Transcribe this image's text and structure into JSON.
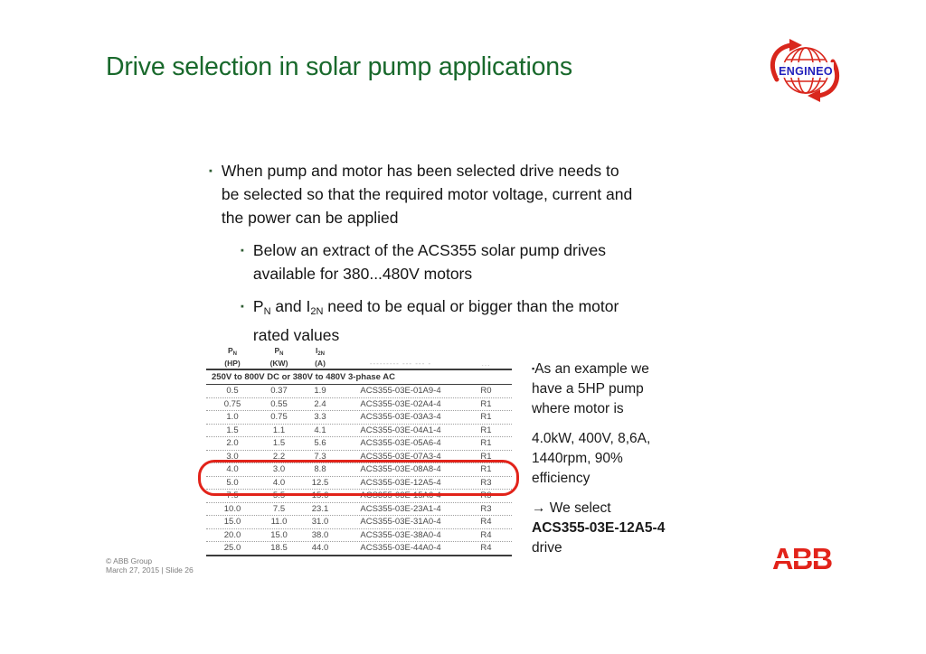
{
  "slide": {
    "title": "Drive selection in solar pump applications",
    "colors": {
      "title_green": "#19692c",
      "highlight_red": "#e2231a",
      "engineo_red": "#d9261c",
      "engineo_blue": "#2121bd",
      "abb_red": "#e2231a"
    },
    "engineo_logo": {
      "text": "ENGINEO"
    },
    "bullet1": {
      "marker": "▪",
      "lines": [
        "When pump and motor has been selected drive needs to",
        "be selected so that the required motor voltage, current and",
        "the power can be applied"
      ]
    },
    "sub1": {
      "marker": "▪",
      "lines": [
        "Below an extract of the ACS355 solar pump drives",
        "available for 380...480V motors"
      ]
    },
    "sub2": {
      "marker": "▪",
      "frag_p": "P",
      "frag_p_sub": "N",
      "frag_mid": " and I",
      "frag_i_sub": "2N",
      "frag_rest": " need to be equal or bigger than the motor",
      "line2": "rated values"
    },
    "table": {
      "headers": [
        {
          "sym": "P",
          "sub": "N",
          "unit": "(HP)"
        },
        {
          "sym": "P",
          "sub": "N",
          "unit": "(KW)"
        },
        {
          "sym": "I",
          "sub": "2N",
          "unit": "(A)"
        },
        {
          "faded": "--------- --- --- -"
        },
        {
          "faded": "..."
        }
      ],
      "band": "250V to 800V DC or 380V to 480V 3-phase AC",
      "rows": [
        [
          "0.5",
          "0.37",
          "1.9",
          "ACS355-03E-01A9-4",
          "R0"
        ],
        [
          "0.75",
          "0.55",
          "2.4",
          "ACS355-03E-02A4-4",
          "R1"
        ],
        [
          "1.0",
          "0.75",
          "3.3",
          "ACS355-03E-03A3-4",
          "R1"
        ],
        [
          "1.5",
          "1.1",
          "4.1",
          "ACS355-03E-04A1-4",
          "R1"
        ],
        [
          "2.0",
          "1.5",
          "5.6",
          "ACS355-03E-05A6-4",
          "R1"
        ],
        [
          "3.0",
          "2.2",
          "7.3",
          "ACS355-03E-07A3-4",
          "R1"
        ],
        [
          "4.0",
          "3.0",
          "8.8",
          "ACS355-03E-08A8-4",
          "R1"
        ],
        [
          "5.0",
          "4.0",
          "12.5",
          "ACS355-03E-12A5-4",
          "R3"
        ],
        [
          "7.5",
          "5.5",
          "15.6",
          "ACS355-03E-15A6-4",
          "R3"
        ],
        [
          "10.0",
          "7.5",
          "23.1",
          "ACS355-03E-23A1-4",
          "R3"
        ],
        [
          "15.0",
          "11.0",
          "31.0",
          "ACS355-03E-31A0-4",
          "R4"
        ],
        [
          "20.0",
          "15.0",
          "38.0",
          "ACS355-03E-38A0-4",
          "R4"
        ],
        [
          "25.0",
          "18.5",
          "44.0",
          "ACS355-03E-44A0-4",
          "R4"
        ]
      ]
    },
    "right_panel": {
      "marker": "▪",
      "p1": [
        "As an example we",
        "have a 5HP pump",
        "where motor is"
      ],
      "p2": [
        "4.0kW, 400V, 8,6A,",
        "1440rpm, 90%",
        "efficiency"
      ],
      "p3_arrow": "→",
      "p3_line1": " We select",
      "p3_code": "ACS355-03E-12A5-4",
      "p3_line3": "drive"
    },
    "footer": {
      "line1": "© ABB Group",
      "line2": "March 27, 2015 | Slide 26"
    },
    "abb_logo_text": "ABB"
  }
}
